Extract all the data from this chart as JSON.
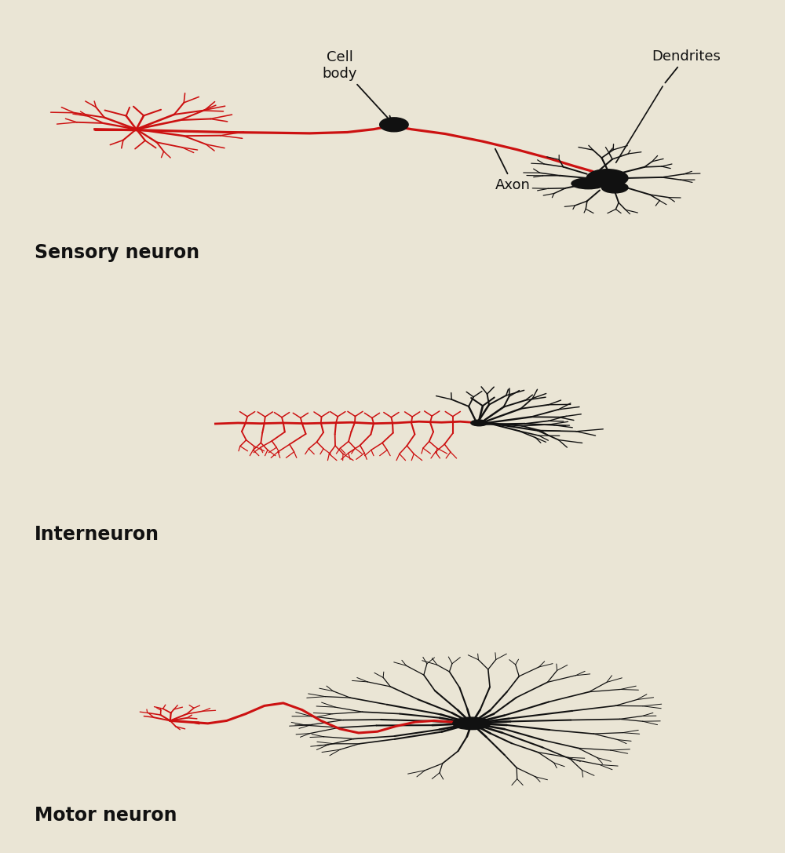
{
  "bg_color": "#EAE5D5",
  "red_color": "#CC1111",
  "black_color": "#111111",
  "labels": {
    "sensory": "Sensory neuron",
    "interneuron": "Interneuron",
    "motor": "Motor neuron",
    "cell_body": "Cell\nbody",
    "axon": "Axon",
    "dendrites": "Dendrites"
  },
  "label_fontsize": 17,
  "annotation_fontsize": 13,
  "fig_width": 10.0,
  "fig_height": 10.87
}
